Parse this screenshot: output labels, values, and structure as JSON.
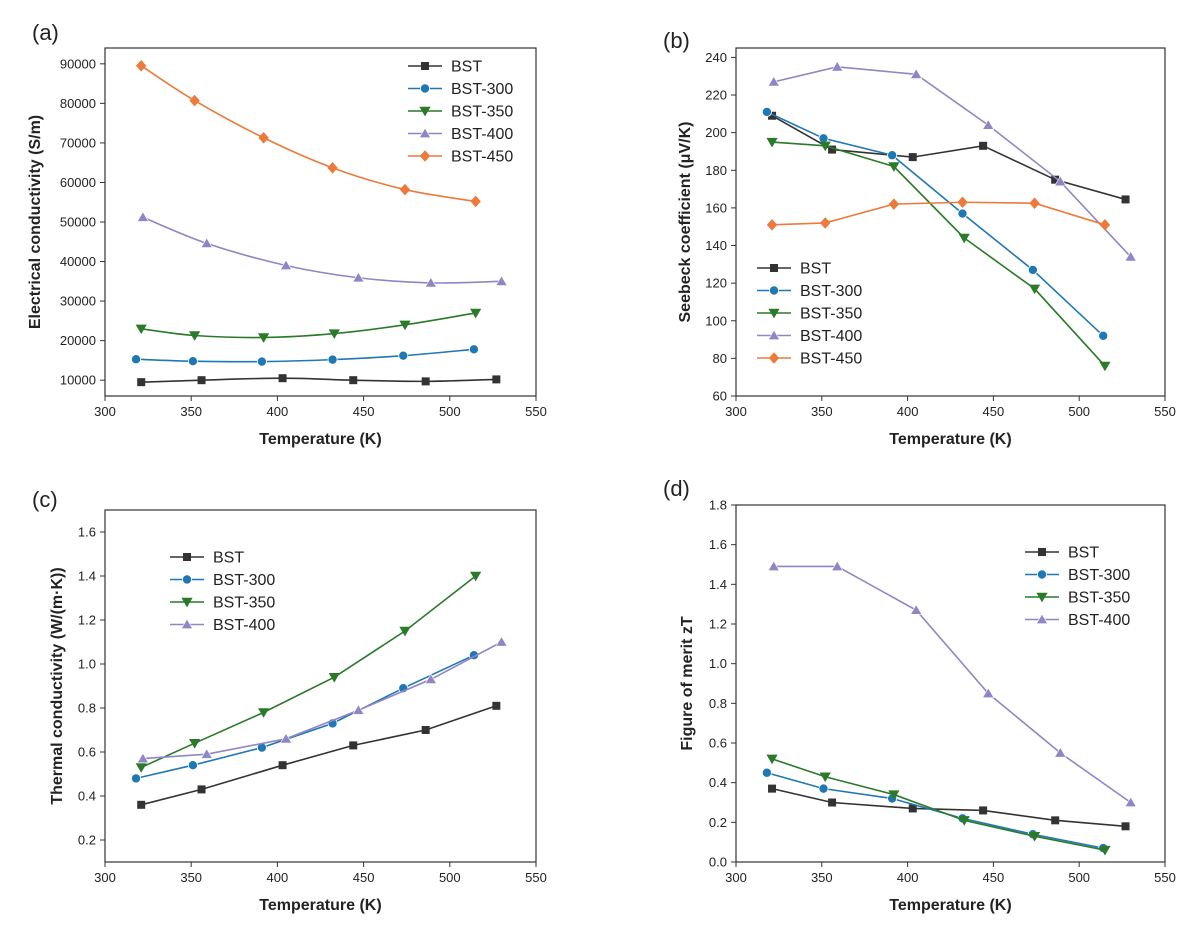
{
  "colors": {
    "BST": "#333333",
    "BST-300": "#1f77b4",
    "BST-350": "#2a7a2a",
    "BST-400": "#8f86c4",
    "BST-450": "#ec7a3c"
  },
  "markers": {
    "BST": "square",
    "BST-300": "circle",
    "BST-350": "triangle-down",
    "BST-400": "triangle-up",
    "BST-450": "diamond"
  },
  "chart_data": [
    {
      "panel_label": "(a)",
      "type": "line",
      "xlabel": "Temperature (K)",
      "ylabel": "Electrical conductivity (S/m)",
      "xlim": [
        300,
        550
      ],
      "ylim": [
        6000,
        94000
      ],
      "xticks": [
        300,
        350,
        400,
        450,
        500,
        550
      ],
      "yticks": [
        10000,
        20000,
        30000,
        40000,
        50000,
        60000,
        70000,
        80000,
        90000
      ],
      "tick_labels_x": [
        "300",
        "350",
        "400",
        "450",
        "500",
        "550"
      ],
      "tick_labels_y": [
        "10000",
        "20000",
        "30000",
        "40000",
        "50000",
        "60000",
        "70000",
        "80000",
        "90000"
      ],
      "legend_position": "top-right",
      "smooth": true,
      "series": [
        {
          "name": "BST",
          "x": [
            321,
            356,
            403,
            444,
            486,
            527
          ],
          "y": [
            9500,
            10000,
            10500,
            10000,
            9700,
            10200
          ]
        },
        {
          "name": "BST-300",
          "x": [
            318,
            351,
            391,
            432,
            473,
            514
          ],
          "y": [
            15300,
            14800,
            14700,
            15200,
            16200,
            17800
          ]
        },
        {
          "name": "BST-350",
          "x": [
            321,
            352,
            392,
            433,
            474,
            515
          ],
          "y": [
            23000,
            21300,
            20800,
            21800,
            24000,
            27000
          ]
        },
        {
          "name": "BST-400",
          "x": [
            322,
            359,
            405,
            447,
            489,
            530
          ],
          "y": [
            51200,
            44600,
            39000,
            35900,
            34600,
            35000
          ]
        },
        {
          "name": "BST-450",
          "x": [
            321,
            352,
            392,
            432,
            474,
            515
          ],
          "y": [
            89500,
            80700,
            71300,
            63700,
            58200,
            55200
          ]
        }
      ]
    },
    {
      "panel_label": "(b)",
      "type": "line",
      "xlabel": "Temperature (K)",
      "ylabel": "Seebeck coefficient (μV/K)",
      "xlim": [
        300,
        550
      ],
      "ylim": [
        60,
        245
      ],
      "xticks": [
        300,
        350,
        400,
        450,
        500,
        550
      ],
      "yticks": [
        60,
        80,
        100,
        120,
        140,
        160,
        180,
        200,
        220,
        240
      ],
      "tick_labels_x": [
        "300",
        "350",
        "400",
        "450",
        "500",
        "550"
      ],
      "tick_labels_y": [
        "60",
        "80",
        "100",
        "120",
        "140",
        "160",
        "180",
        "200",
        "220",
        "240"
      ],
      "legend_position": "bottom-left",
      "smooth": false,
      "series": [
        {
          "name": "BST",
          "x": [
            321,
            356,
            403,
            444,
            486,
            527
          ],
          "y": [
            209,
            191,
            187,
            193,
            175,
            164.5
          ]
        },
        {
          "name": "BST-300",
          "x": [
            318,
            351,
            391,
            432,
            473,
            514
          ],
          "y": [
            211,
            197,
            188,
            157,
            127,
            92
          ]
        },
        {
          "name": "BST-350",
          "x": [
            321,
            352,
            392,
            433,
            474,
            515
          ],
          "y": [
            195,
            193,
            182,
            144,
            117,
            76
          ]
        },
        {
          "name": "BST-400",
          "x": [
            322,
            359,
            405,
            447,
            489,
            530
          ],
          "y": [
            227,
            235,
            231,
            204,
            174,
            134
          ]
        },
        {
          "name": "BST-450",
          "x": [
            321,
            352,
            392,
            432,
            474,
            515
          ],
          "y": [
            151,
            152,
            162,
            163,
            162.5,
            151
          ]
        }
      ]
    },
    {
      "panel_label": "(c)",
      "type": "line",
      "xlabel": "Temperature (K)",
      "ylabel": "Thermal conductivity (W/(m·K))",
      "xlim": [
        300,
        550
      ],
      "ylim": [
        0.1,
        1.7
      ],
      "xticks": [
        300,
        350,
        400,
        450,
        500,
        550
      ],
      "yticks": [
        0.2,
        0.4,
        0.6,
        0.8,
        1.0,
        1.2,
        1.4,
        1.6
      ],
      "tick_labels_x": [
        "300",
        "350",
        "400",
        "450",
        "500",
        "550"
      ],
      "tick_labels_y": [
        "0.2",
        "0.4",
        "0.6",
        "0.8",
        "1.0",
        "1.2",
        "1.4",
        "1.6"
      ],
      "legend_position": "top-left",
      "smooth": false,
      "series": [
        {
          "name": "BST",
          "x": [
            321,
            356,
            403,
            444,
            486,
            527
          ],
          "y": [
            0.36,
            0.43,
            0.54,
            0.63,
            0.7,
            0.81
          ]
        },
        {
          "name": "BST-300",
          "x": [
            318,
            351,
            391,
            432,
            473,
            514
          ],
          "y": [
            0.48,
            0.54,
            0.62,
            0.73,
            0.89,
            1.04
          ]
        },
        {
          "name": "BST-350",
          "x": [
            321,
            352,
            392,
            433,
            474,
            515
          ],
          "y": [
            0.53,
            0.64,
            0.78,
            0.94,
            1.15,
            1.4
          ]
        },
        {
          "name": "BST-400",
          "x": [
            322,
            359,
            405,
            447,
            489,
            530
          ],
          "y": [
            0.57,
            0.59,
            0.66,
            0.79,
            0.93,
            1.1
          ]
        }
      ]
    },
    {
      "panel_label": "(d)",
      "type": "line",
      "xlabel": "Temperature (K)",
      "ylabel": "Figure of merit zT",
      "xlim": [
        300,
        550
      ],
      "ylim": [
        0.0,
        1.8
      ],
      "xticks": [
        300,
        350,
        400,
        450,
        500,
        550
      ],
      "yticks": [
        0.0,
        0.2,
        0.4,
        0.6,
        0.8,
        1.0,
        1.2,
        1.4,
        1.6,
        1.8
      ],
      "tick_labels_x": [
        "300",
        "350",
        "400",
        "450",
        "500",
        "550"
      ],
      "tick_labels_y": [
        "0.0",
        "0.2",
        "0.4",
        "0.6",
        "0.8",
        "1.0",
        "1.2",
        "1.4",
        "1.6",
        "1.8"
      ],
      "legend_position": "top-right",
      "smooth": false,
      "series": [
        {
          "name": "BST",
          "x": [
            321,
            356,
            403,
            444,
            486,
            527
          ],
          "y": [
            0.37,
            0.3,
            0.27,
            0.26,
            0.21,
            0.18
          ]
        },
        {
          "name": "BST-300",
          "x": [
            318,
            351,
            391,
            432,
            473,
            514
          ],
          "y": [
            0.45,
            0.37,
            0.32,
            0.22,
            0.14,
            0.07
          ]
        },
        {
          "name": "BST-350",
          "x": [
            321,
            352,
            392,
            433,
            474,
            515
          ],
          "y": [
            0.52,
            0.43,
            0.34,
            0.21,
            0.13,
            0.06
          ]
        },
        {
          "name": "BST-400",
          "x": [
            322,
            359,
            405,
            447,
            489,
            530
          ],
          "y": [
            1.49,
            1.49,
            1.27,
            0.85,
            0.55,
            0.3
          ]
        }
      ]
    }
  ]
}
